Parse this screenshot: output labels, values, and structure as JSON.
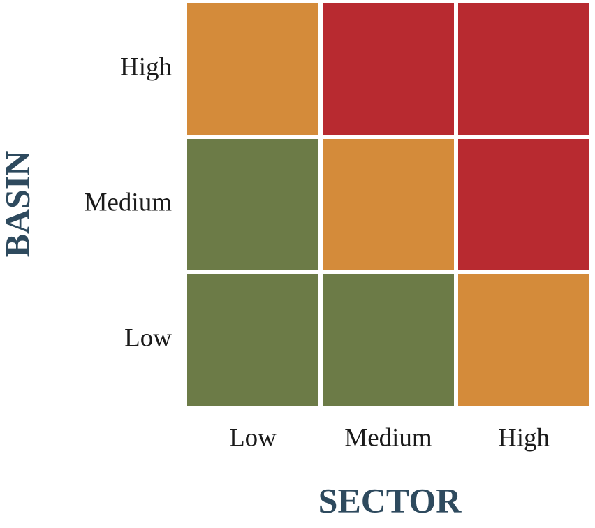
{
  "y_axis": {
    "title": "BASIN",
    "labels": [
      "High",
      "Medium",
      "Low"
    ]
  },
  "x_axis": {
    "title": "SECTOR",
    "labels": [
      "Low",
      "Medium",
      "High"
    ]
  },
  "cells": [
    [
      "#d48b3a",
      "#b82a30",
      "#b82a30"
    ],
    [
      "#6c7b47",
      "#d48b3a",
      "#b82a30"
    ],
    [
      "#6c7b47",
      "#6c7b47",
      "#d48b3a"
    ]
  ],
  "title_color": "#2e4a5e"
}
